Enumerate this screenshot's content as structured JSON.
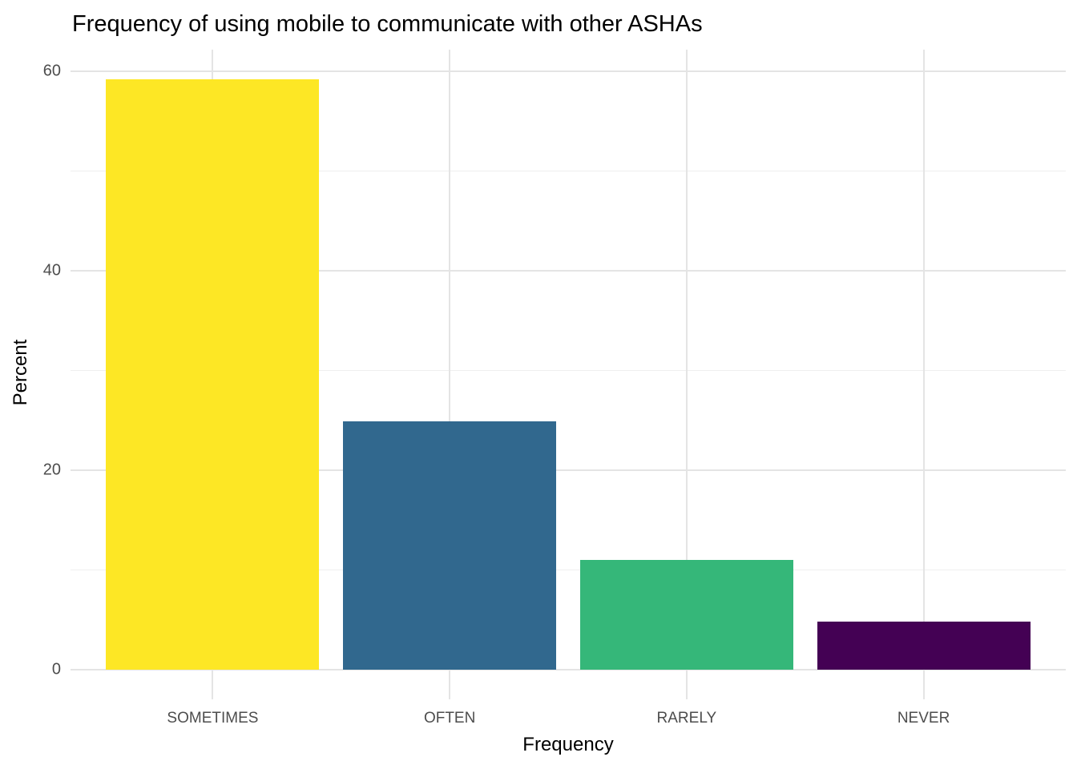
{
  "page": {
    "background": "#FFFFFF"
  },
  "chart_data": {
    "type": "bar",
    "title": "Frequency of using mobile to communicate with other ASHAs",
    "xlabel": "Frequency",
    "ylabel": "Percent",
    "categories": [
      "SOMETIMES",
      "OFTEN",
      "RARELY",
      "NEVER"
    ],
    "values": [
      59.2,
      24.9,
      11.0,
      4.8
    ],
    "bar_colors": [
      "#FDE725",
      "#31688E",
      "#35B779",
      "#440154"
    ],
    "ylim": [
      0,
      62
    ],
    "yticks_major": [
      0,
      20,
      40,
      60
    ],
    "yticks_minor": [
      10,
      30,
      50
    ],
    "grid": "horizontal major and minor lines; vertical major line at each category center; no axis lines; no ticks",
    "legend_position": "none",
    "styles": {
      "grid_major_color": "#E4E4E4",
      "grid_minor_color": "#EFEFEF",
      "tick_label_color": "#4D4D4D",
      "title_color": "#000000",
      "axis_title_color": "#000000",
      "panel_background": "#FFFFFF"
    }
  }
}
